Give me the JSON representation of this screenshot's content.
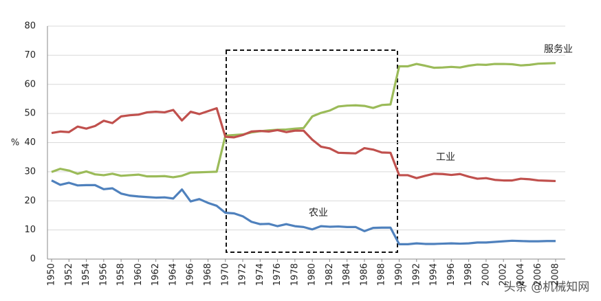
{
  "chart_data": {
    "type": "line",
    "y_label": "%",
    "x": [
      1950,
      1951,
      1952,
      1953,
      1954,
      1955,
      1956,
      1957,
      1958,
      1959,
      1960,
      1961,
      1962,
      1963,
      1964,
      1965,
      1966,
      1967,
      1968,
      1969,
      1970,
      1971,
      1972,
      1973,
      1974,
      1975,
      1976,
      1977,
      1978,
      1979,
      1980,
      1981,
      1982,
      1983,
      1984,
      1985,
      1986,
      1987,
      1988,
      1989,
      1990,
      1991,
      1992,
      1993,
      1994,
      1995,
      1996,
      1997,
      1998,
      1999,
      2000,
      2001,
      2002,
      2003,
      2004,
      2005,
      2006,
      2007,
      2008
    ],
    "series": [
      {
        "name": "服务业",
        "color": "#9bbb59",
        "values": [
          29.9,
          31,
          30.4,
          29.3,
          30.1,
          29.1,
          28.8,
          29.3,
          28.6,
          28.8,
          29,
          28.4,
          28.4,
          28.5,
          28.1,
          28.6,
          29.7,
          29.8,
          29.9,
          30,
          42.4,
          42.6,
          42.8,
          43.5,
          43.9,
          44.2,
          44.4,
          44.5,
          44.8,
          45,
          49,
          50.2,
          51,
          52.4,
          52.7,
          52.8,
          52.6,
          51.9,
          52.9,
          53.1,
          66.2,
          66.2,
          67,
          66.4,
          65.7,
          65.8,
          66,
          65.8,
          66.4,
          66.8,
          66.7,
          67,
          67,
          66.9,
          66.5,
          66.7,
          67.1,
          67.2,
          67.3
        ]
      },
      {
        "name": "工业",
        "color": "#c0504d",
        "values": [
          43.3,
          43.8,
          43.6,
          45.5,
          44.8,
          45.7,
          47.5,
          46.7,
          49,
          49.4,
          49.6,
          50.4,
          50.6,
          50.4,
          51.2,
          47.6,
          50.6,
          49.8,
          50.8,
          51.8,
          42,
          41.8,
          42.6,
          43.8,
          44,
          43.8,
          44.3,
          43.6,
          44.1,
          44.1,
          41,
          38.6,
          38,
          36.5,
          36.4,
          36.3,
          38.1,
          37.6,
          36.6,
          36.5,
          28.8,
          28.8,
          27.8,
          28.6,
          29.3,
          29.2,
          28.9,
          29.2,
          28.3,
          27.6,
          27.8,
          27.2,
          27,
          27,
          27.6,
          27.4,
          27,
          26.9,
          26.8
        ]
      },
      {
        "name": "农业",
        "color": "#4f81bd",
        "values": [
          27,
          25.5,
          26.2,
          25.3,
          25.4,
          25.4,
          24,
          24.3,
          22.5,
          21.8,
          21.5,
          21.3,
          21.1,
          21.2,
          20.8,
          23.9,
          19.8,
          20.6,
          19.3,
          18.3,
          15.9,
          15.7,
          14.7,
          12.8,
          12,
          12.1,
          11.3,
          12,
          11.3,
          11,
          10.2,
          11.3,
          11.1,
          11.2,
          11,
          11,
          9.6,
          10.7,
          10.8,
          10.8,
          5.1,
          5.1,
          5.4,
          5.2,
          5.2,
          5.3,
          5.4,
          5.3,
          5.4,
          5.7,
          5.7,
          5.9,
          6.1,
          6.3,
          6.2,
          6.1,
          6.1,
          6.2,
          6.2
        ]
      }
    ],
    "xlim": [
      1950,
      2008
    ],
    "xticks": [
      1950,
      1952,
      1954,
      1956,
      1958,
      1960,
      1962,
      1964,
      1966,
      1968,
      1970,
      1972,
      1974,
      1976,
      1978,
      1980,
      1982,
      1984,
      1986,
      1988,
      1990,
      1992,
      1994,
      1996,
      1998,
      2000,
      2002,
      2004,
      2006,
      2008
    ],
    "ylim": [
      0,
      80
    ],
    "yticks": [
      0,
      10,
      20,
      30,
      40,
      50,
      60,
      70,
      80
    ],
    "grid": true,
    "watermark": "头条 @机械知网"
  }
}
